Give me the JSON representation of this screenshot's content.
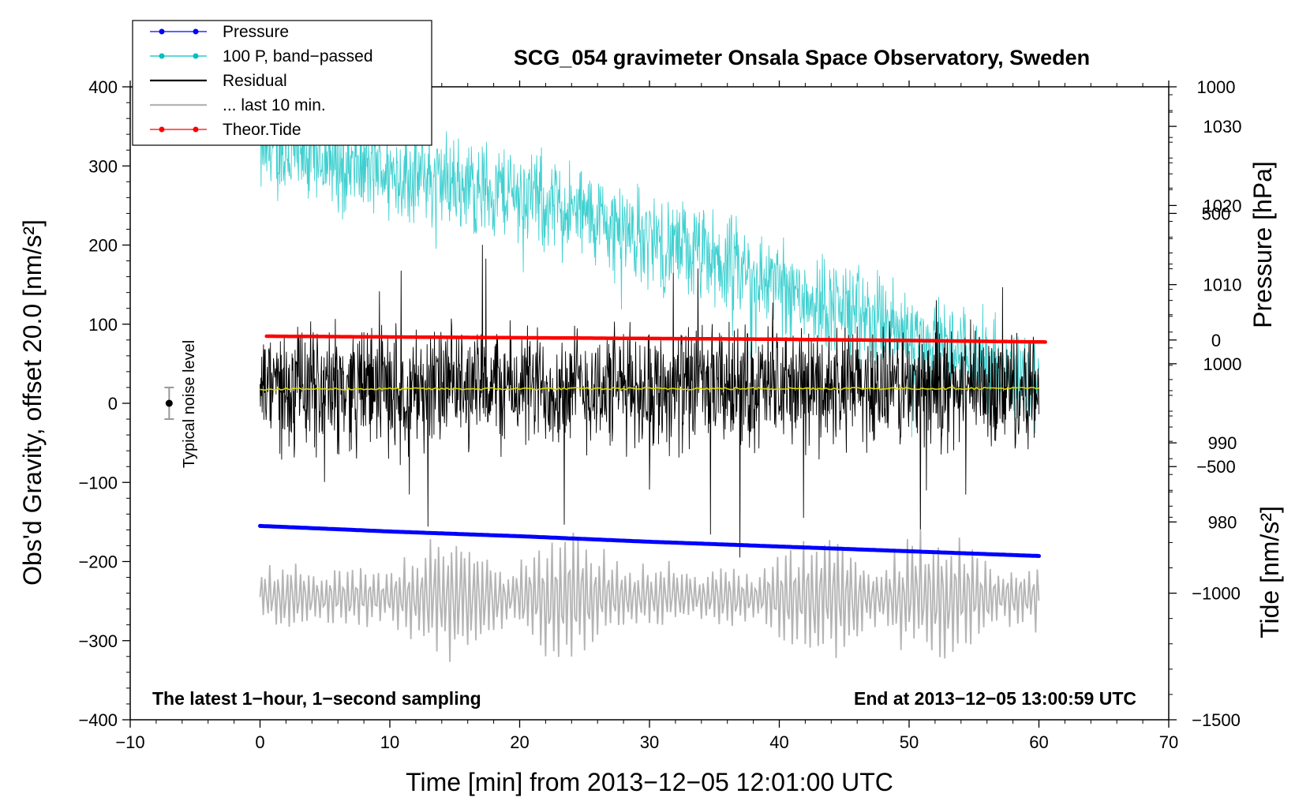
{
  "chart_data": {
    "type": "line",
    "title": "SCG_054 gravimeter Onsala Space Observatory, Sweden",
    "xlabel": "Time [min] from 2013−12−05 12:01:00 UTC",
    "ylabel_main": "Obs'd Gravity, offset 20.0 [nm/s²]",
    "ylabel_pressure": "Pressure [hPa]",
    "ylabel_tide": "Tide [nm/s²]",
    "xlim": [
      -10,
      70
    ],
    "ylim_main": [
      -400,
      400
    ],
    "ylim_pressure": [
      955,
      1035
    ],
    "ylim_tide": [
      -1500,
      1000
    ],
    "x_ticks": [
      "−10",
      "0",
      "10",
      "20",
      "30",
      "40",
      "50",
      "60",
      "70"
    ],
    "x_tick_values": [
      -10,
      0,
      10,
      20,
      30,
      40,
      50,
      60,
      70
    ],
    "y_ticks_main": [
      "400",
      "300",
      "200",
      "100",
      "0",
      "−100",
      "−200",
      "−300",
      "−400"
    ],
    "y_tick_values_main": [
      400,
      300,
      200,
      100,
      0,
      -100,
      -200,
      -300,
      -400
    ],
    "y_ticks_pressure": [
      "1030",
      "1020",
      "1010",
      "1000",
      "990",
      "980"
    ],
    "y_tick_values_pressure": [
      1030,
      1020,
      1010,
      1000,
      990,
      980
    ],
    "y_ticks_tide": [
      "1000",
      "500",
      "0",
      "−500",
      "−1000",
      "−1500"
    ],
    "y_tick_values_tide": [
      1000,
      500,
      0,
      -500,
      -1000,
      -1500
    ],
    "legend": [
      {
        "label": "Pressure",
        "color": "#0000ff",
        "marker": true
      },
      {
        "label": "100 P, band−passed",
        "color": "#00c0c0",
        "marker": true
      },
      {
        "label": "Residual",
        "color": "#000000",
        "marker": false
      },
      {
        "label": "... last 10 min.",
        "color": "#b4b4b4",
        "marker": false
      },
      {
        "label": "Theor.Tide",
        "color": "#ff0000",
        "marker": true
      }
    ],
    "annotations": {
      "left": "The latest 1−hour, 1−second sampling",
      "right": "End at 2013−12−05 13:00:59 UTC",
      "noise": "Typical noise level"
    },
    "noise_bar": {
      "x": -7,
      "y": 0,
      "err": 20
    },
    "series": [
      {
        "name": "Pressure",
        "axis": "pressure",
        "color": "#0000ff",
        "x": [
          0,
          10,
          20,
          30,
          40,
          50,
          60
        ],
        "y": [
          979.5,
          978.8,
          978.2,
          977.5,
          976.9,
          976.3,
          975.7
        ]
      },
      {
        "name": "100 P, band−passed",
        "axis": "main",
        "color": "#40d0d0",
        "x_range": [
          0,
          60
        ],
        "trend": [
          [
            0,
            320
          ],
          [
            20,
            265
          ],
          [
            40,
            150
          ],
          [
            60,
            25
          ]
        ],
        "amplitude": 55
      },
      {
        "name": "Residual",
        "axis": "main",
        "color": "#000000",
        "x_range": [
          0,
          60
        ],
        "mean": 20,
        "amplitude": 95
      },
      {
        "name": "Residual smoothed",
        "axis": "main",
        "color": "#d8d800",
        "x": [
          0,
          60
        ],
        "y": [
          18,
          19
        ]
      },
      {
        "name": "... last 10 min.",
        "axis": "main",
        "color": "#b4b4b4",
        "x_range": [
          0,
          60
        ],
        "mean": -245,
        "amplitude": 90
      },
      {
        "name": "Theor.Tide",
        "axis": "tide",
        "color": "#ff0000",
        "x": [
          0.5,
          10,
          20,
          30,
          40,
          50,
          60.5
        ],
        "y": [
          15,
          12,
          9,
          6,
          3,
          -2,
          -8
        ]
      }
    ]
  }
}
